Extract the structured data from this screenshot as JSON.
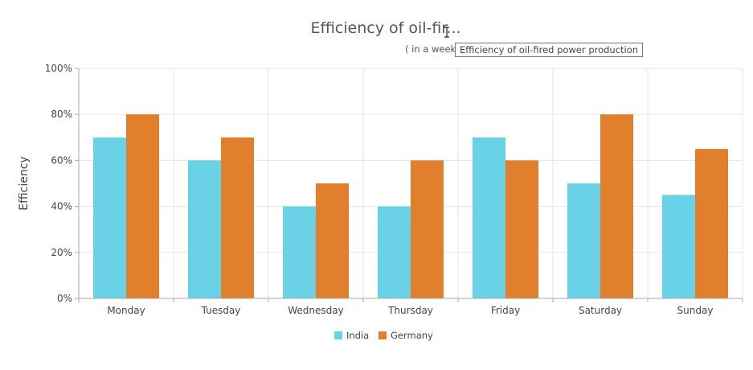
{
  "chart_data": {
    "type": "bar",
    "title": "Efficiency of oil-fir...",
    "subtitle": "( in a week",
    "ylabel": "Efficiency",
    "xlabel": "",
    "ylim": [
      0,
      100
    ],
    "y_tick_values": [
      0,
      20,
      40,
      60,
      80,
      100
    ],
    "y_tick_labels": [
      "0%",
      "20%",
      "40%",
      "60%",
      "80%",
      "100%"
    ],
    "categories": [
      "Monday",
      "Tuesday",
      "Wednesday",
      "Thursday",
      "Friday",
      "Saturday",
      "Sunday"
    ],
    "series": [
      {
        "name": "India",
        "color": "#69d2e7",
        "values": [
          70,
          60,
          40,
          40,
          70,
          50,
          45
        ]
      },
      {
        "name": "Germany",
        "color": "#e27f2d",
        "values": [
          80,
          70,
          50,
          60,
          60,
          80,
          65
        ]
      }
    ],
    "grid": true,
    "legend_position": "bottom-center"
  },
  "tooltip": {
    "text": "Efficiency of oil-fired power production"
  }
}
